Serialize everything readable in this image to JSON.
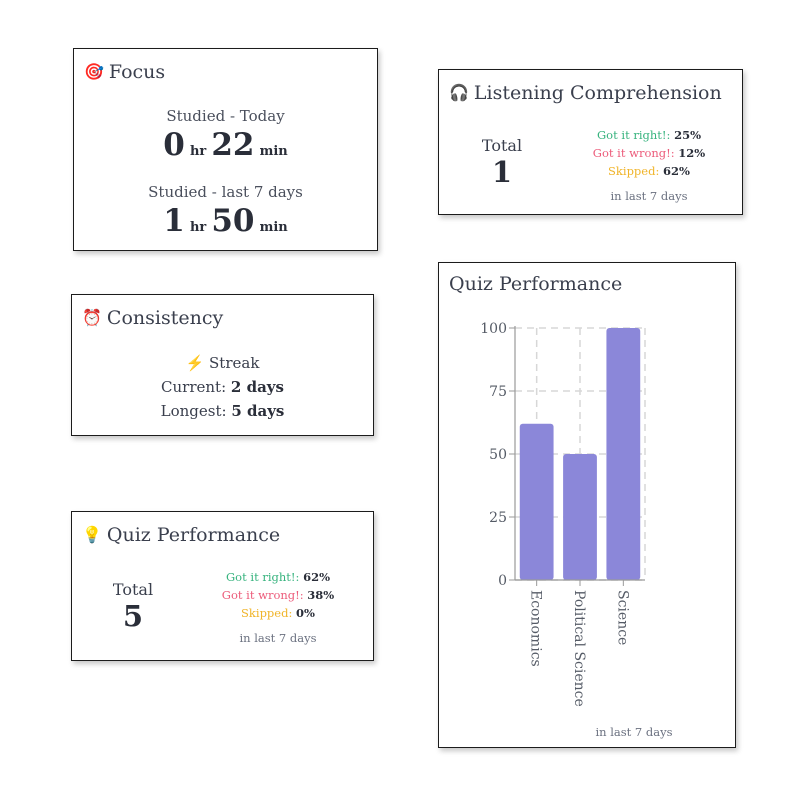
{
  "focus": {
    "icon": "target-icon",
    "title": "Focus",
    "today_label": "Studied - Today",
    "today_hr": "0",
    "today_min": "22",
    "week_label": "Studied - last 7 days",
    "week_hr": "1",
    "week_min": "50",
    "hr_unit": "hr",
    "min_unit": "min"
  },
  "listening": {
    "icon": "headphones-icon",
    "title": "Listening Comprehension",
    "total_label": "Total",
    "total_value": "1",
    "right_label": "Got it right!:",
    "right_value": "25%",
    "wrong_label": "Got it wrong!:",
    "wrong_value": "12%",
    "skipped_label": "Skipped:",
    "skipped_value": "62%",
    "period": "in last 7 days"
  },
  "consistency": {
    "icon": "alarm-clock-icon",
    "title": "Consistency",
    "streak_icon": "lightning-icon",
    "streak_label": "Streak",
    "current_label": "Current:",
    "current_value": "2 days",
    "longest_label": "Longest:",
    "longest_value": "5 days"
  },
  "quiz": {
    "icon": "lightbulb-icon",
    "title": "Quiz Performance",
    "total_label": "Total",
    "total_value": "5",
    "right_label": "Got it right!:",
    "right_value": "62%",
    "wrong_label": "Got it wrong!:",
    "wrong_value": "38%",
    "skipped_label": "Skipped:",
    "skipped_value": "0%",
    "period": "in last 7 days"
  },
  "quiz_chart_card": {
    "title": "Quiz Performance",
    "period": "in last 7 days",
    "bar_color": "#8b87d9"
  },
  "colors": {
    "right": "#37b37e",
    "wrong": "#ec5b7a",
    "skipped": "#f0b429"
  },
  "chart_data": {
    "type": "bar",
    "categories": [
      "Economics",
      "Political Science",
      "Science"
    ],
    "values": [
      62,
      50,
      100
    ],
    "ylim": [
      0,
      100
    ],
    "yticks": [
      0,
      25,
      50,
      75,
      100
    ],
    "grid": true,
    "title": "Quiz Performance",
    "xlabel": "",
    "ylabel": ""
  }
}
